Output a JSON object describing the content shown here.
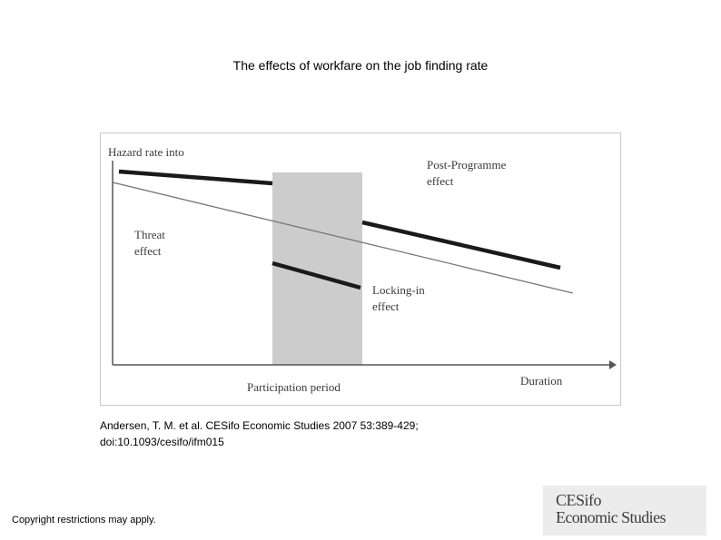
{
  "slide": {
    "title": "The effects of workfare on the job finding rate",
    "citation_line1": "Andersen, T. M. et al. CESifo Economic Studies 2007 53:389-429;",
    "citation_line2": "doi:10.1093/cesifo/ifm015",
    "copyright": "Copyright restrictions may apply."
  },
  "figure": {
    "y_axis_label": "Hazard rate into",
    "x_axis_label": "Duration",
    "period_label": "Participation period",
    "post_programme_label": [
      "Post-Programme",
      "effect"
    ],
    "threat_label": [
      "Threat",
      "effect"
    ],
    "locking_in_label": [
      "Locking-in",
      "effect"
    ],
    "colors": {
      "axis": "#555555",
      "thick_line": "#1a1a1a",
      "baseline": "#777777",
      "participation_band": "#cccccc"
    }
  },
  "logo": {
    "line1": "CESifo",
    "line2": "Economic Studies"
  }
}
